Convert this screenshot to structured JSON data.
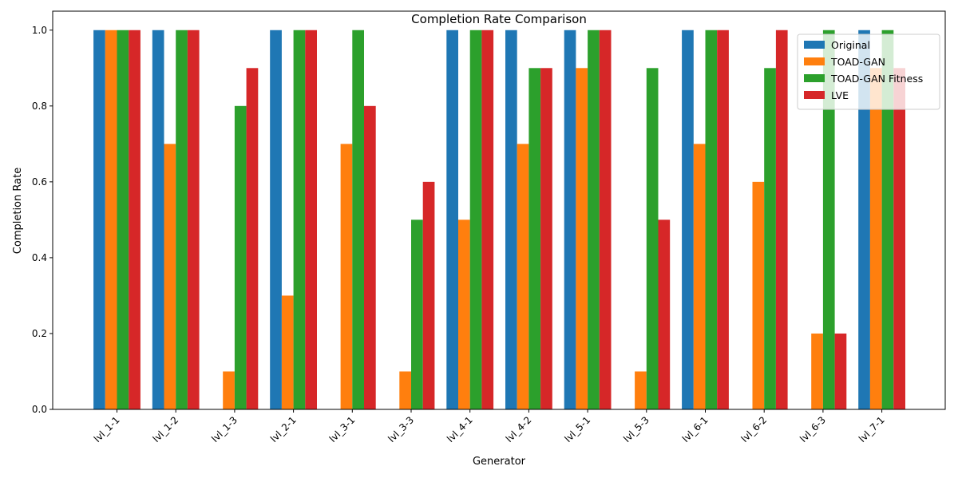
{
  "chart_data": {
    "type": "bar",
    "title": "Completion Rate Comparison",
    "xlabel": "Generator",
    "ylabel": "Completion Rate",
    "ylim": [
      0,
      1.05
    ],
    "yticks": [
      "0.0",
      "0.2",
      "0.4",
      "0.6",
      "0.8",
      "1.0"
    ],
    "grid": false,
    "legend_position": "top-right",
    "categories": [
      "lvl_1-1",
      "lvl_1-2",
      "lvl_1-3",
      "lvl_2-1",
      "lvl_3-1",
      "lvl_3-3",
      "lvl_4-1",
      "lvl_4-2",
      "lvl_5-1",
      "lvl_5-3",
      "lvl_6-1",
      "lvl_6-2",
      "lvl_6-3",
      "lvl_7-1"
    ],
    "series": [
      {
        "name": "Original",
        "color": "#1f77b4",
        "values": [
          1.0,
          1.0,
          0.0,
          1.0,
          0.0,
          0.0,
          1.0,
          1.0,
          1.0,
          0.0,
          1.0,
          0.0,
          0.0,
          1.0
        ]
      },
      {
        "name": "TOAD-GAN",
        "color": "#ff7f0e",
        "values": [
          1.0,
          0.7,
          0.1,
          0.3,
          0.7,
          0.1,
          0.5,
          0.7,
          0.9,
          0.1,
          0.7,
          0.6,
          0.2,
          0.9
        ]
      },
      {
        "name": "TOAD-GAN Fitness",
        "color": "#2ca02c",
        "values": [
          1.0,
          1.0,
          0.8,
          1.0,
          1.0,
          0.5,
          1.0,
          0.9,
          1.0,
          0.9,
          1.0,
          0.9,
          1.0,
          1.0
        ]
      },
      {
        "name": "LVE",
        "color": "#d62728",
        "values": [
          1.0,
          1.0,
          0.9,
          1.0,
          0.8,
          0.6,
          1.0,
          0.9,
          1.0,
          0.5,
          1.0,
          1.0,
          0.2,
          0.9
        ]
      }
    ]
  }
}
